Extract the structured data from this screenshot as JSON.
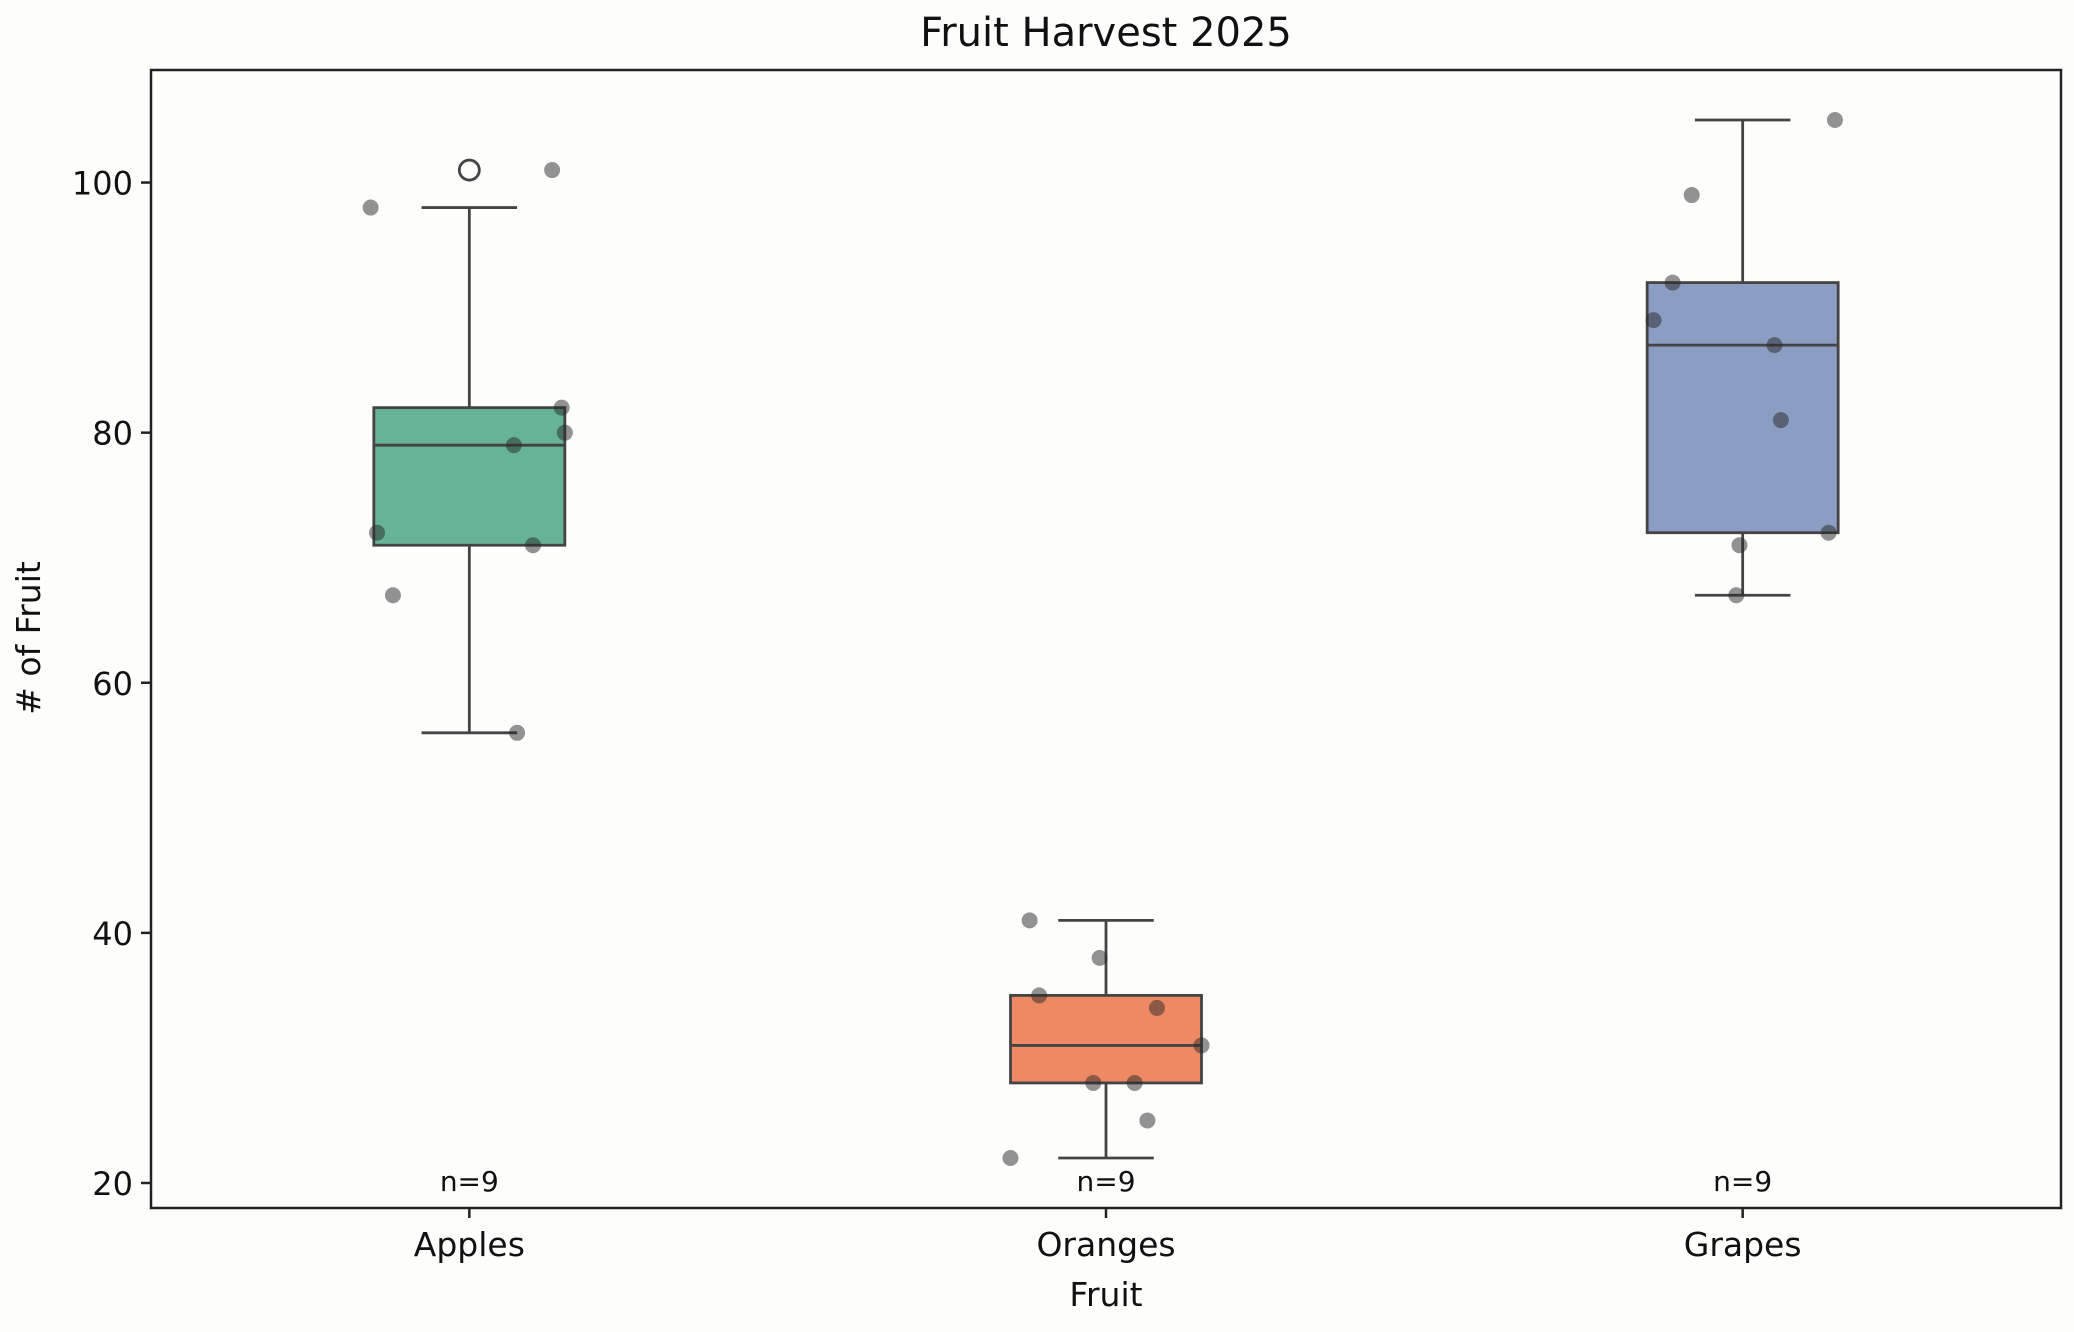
{
  "chart_data": {
    "type": "box",
    "title": "Fruit Harvest 2025",
    "xlabel": "Fruit",
    "ylabel": "# of Fruit",
    "ylim": [
      18,
      109
    ],
    "yticks": [
      20,
      40,
      60,
      80,
      100
    ],
    "grid": false,
    "categories": [
      "Apples",
      "Oranges",
      "Grapes"
    ],
    "boxes": [
      {
        "category": "Apples",
        "color": "#66b396",
        "q1": 71,
        "median": 79,
        "q3": 82,
        "whisker_low": 56,
        "whisker_high": 98,
        "outliers": [
          101
        ],
        "count_label": "n=9",
        "points": [
          [
            -0.155,
            98
          ],
          [
            0.13,
            101
          ],
          [
            0.145,
            82
          ],
          [
            0.15,
            80
          ],
          [
            0.07,
            79
          ],
          [
            -0.145,
            72
          ],
          [
            0.1,
            71
          ],
          [
            -0.12,
            67
          ],
          [
            0.075,
            56
          ]
        ]
      },
      {
        "category": "Oranges",
        "color": "#ee8a63",
        "q1": 28,
        "median": 31,
        "q3": 35,
        "whisker_low": 22,
        "whisker_high": 41,
        "outliers": [],
        "count_label": "n=9",
        "points": [
          [
            -0.12,
            41
          ],
          [
            -0.01,
            38
          ],
          [
            -0.105,
            35
          ],
          [
            0.08,
            34
          ],
          [
            0.15,
            31
          ],
          [
            -0.02,
            28
          ],
          [
            0.045,
            28
          ],
          [
            0.065,
            25
          ],
          [
            -0.15,
            22
          ]
        ]
      },
      {
        "category": "Grapes",
        "color": "#8b9dc3",
        "q1": 72,
        "median": 87,
        "q3": 92,
        "whisker_low": 67,
        "whisker_high": 105,
        "outliers": [],
        "count_label": "n=9",
        "points": [
          [
            0.145,
            105
          ],
          [
            -0.08,
            99
          ],
          [
            -0.11,
            92
          ],
          [
            -0.14,
            89
          ],
          [
            0.05,
            87
          ],
          [
            0.06,
            81
          ],
          [
            0.135,
            72
          ],
          [
            -0.005,
            71
          ],
          [
            -0.01,
            67
          ]
        ]
      }
    ]
  }
}
